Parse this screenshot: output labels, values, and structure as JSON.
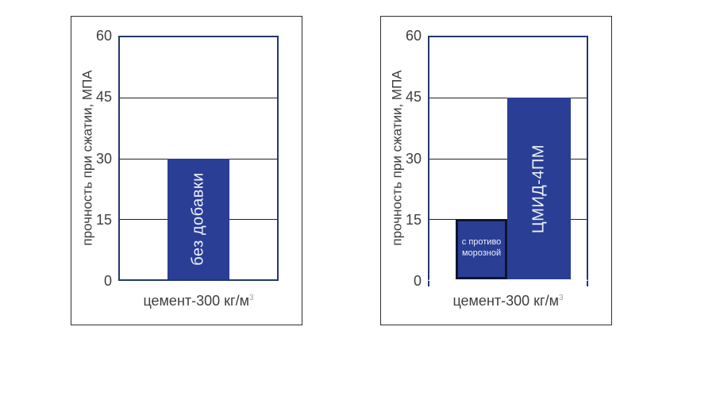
{
  "colors": {
    "bar_fill": "#2a3e96",
    "frame": "#24386f",
    "grid": "#222222",
    "outline": "#0f152e",
    "text": "#3e3e3e",
    "bar_text": "#eef1f8",
    "superscript": "#a89f8d",
    "panel_border": "#2e2e2e",
    "background": "#ffffff"
  },
  "chart_data": [
    {
      "type": "bar",
      "title": "",
      "ylabel": "прочность при сжатии, МПА",
      "xlabel": "цемент-300 кг/м",
      "xlabel_sup": "3",
      "ylim": [
        0,
        60
      ],
      "yticks": [
        0,
        15,
        30,
        45,
        60
      ],
      "grid": true,
      "baseline_line": true,
      "legend": "none",
      "bars": [
        {
          "id": "bez-dobavki",
          "label": "без добавки",
          "value": 30,
          "unit": "МПА",
          "label_style": "vertical",
          "outlined": false,
          "left_pct": 30.3,
          "width_pct": 39.4
        }
      ]
    },
    {
      "type": "bar",
      "title": "",
      "ylabel": "прочность при сжатии, МПА",
      "xlabel": "цемент-300 кг/м",
      "xlabel_sup": "3",
      "ylim": [
        0,
        60
      ],
      "yticks": [
        0,
        15,
        30,
        45,
        60
      ],
      "grid": true,
      "baseline_line": false,
      "legend": "none",
      "bars": [
        {
          "id": "s-protivomoroznoy",
          "label": "с противо морозной",
          "label_lines": [
            "с противо",
            "морозной"
          ],
          "value": 15,
          "unit": "МПА",
          "label_style": "small-horizontal",
          "outlined": true,
          "left_pct": 16.7,
          "width_pct": 32.8
        },
        {
          "id": "cmid-4pm",
          "label": "ЦМИД-4ПМ",
          "value": 45,
          "unit": "МПА",
          "label_style": "vertical",
          "outlined": false,
          "left_pct": 49.5,
          "width_pct": 40.4
        }
      ]
    }
  ]
}
